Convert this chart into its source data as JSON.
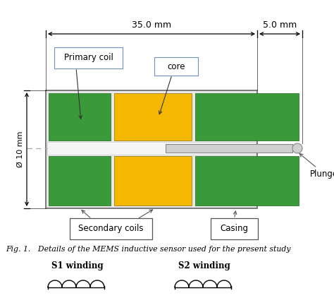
{
  "fig_width": 4.74,
  "fig_height": 4.22,
  "dpi": 100,
  "bg_color": "#ffffff",
  "green_color": "#3a9a3a",
  "yellow_color": "#f5b800",
  "dim_35mm_text": "35.0 mm",
  "dim_5mm_text": "5.0 mm",
  "dim_10mm_text": "Ø 10 mm",
  "label_primary": "Primary coil",
  "label_core": "core",
  "label_secondary": "Secondary coils",
  "label_casing": "Casing",
  "label_plunger": "Plunger",
  "caption": "Fig. 1.   Details of the MEMS inductive sensor used for the present study",
  "s1_label": "S1 winding",
  "s2_label": "S2 winding"
}
